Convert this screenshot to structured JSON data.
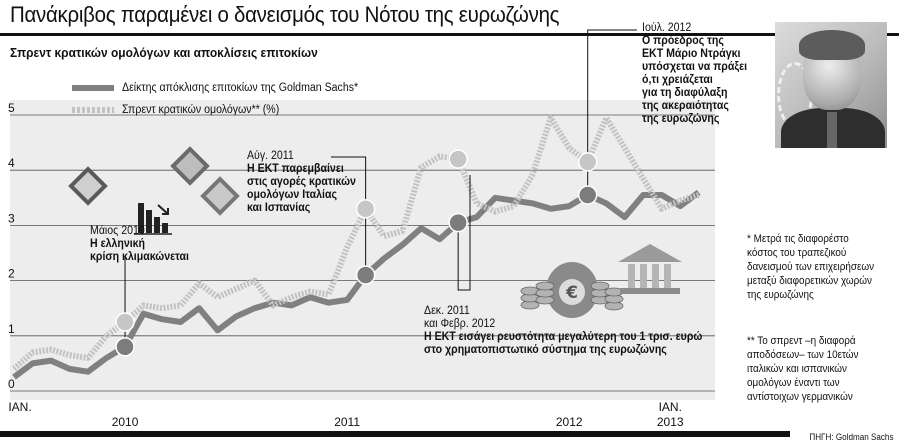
{
  "title": "Πανάκριβος παραμένει ο δανεισμός του Νότου της ευρωζώνης",
  "subtitle": "Σπρεντ κρατικών ομολόγων και αποκλίσεις επιτοκίων",
  "legend": {
    "series1": "Δείκτης απόκλισης επιτοκίων της Goldman Sachs*",
    "series2": "Σπρεντ κρατικών ομολόγων** (%)"
  },
  "annotations": {
    "may2010": {
      "date": "Μάιος 2010",
      "text1": "Η ελληνική",
      "text2": "κρίση κλιμακώνεται"
    },
    "aug2011": {
      "date": "Αύγ. 2011",
      "text1": "Η ΕΚΤ παρεμβαίνει",
      "text2": "στις αγορές κρατικών",
      "text3": "ομολόγων Ιταλίας",
      "text4": "και Ισπανίας"
    },
    "dec2011": {
      "date1": "Δεκ. 2011",
      "date2": "και Φεβρ. 2012",
      "text1": "Η ΕΚΤ εισάγει ρευστότητα μεγαλύτερη του 1 τρισ. ευρώ",
      "text2": "στο χρηματοπιστωτικό σύστημα της ευρωζώνης"
    },
    "jul2012": {
      "date": "Ιούλ. 2012",
      "text1": "Ο πρόεδρος της",
      "text2": "ΕΚΤ Μάριο Ντράγκι",
      "text3": "υπόσχεται να πράξει",
      "text4": "ό,τι χρειάζεται",
      "text5": "για τη διαφύλαξη",
      "text6": "της ακεραιότητας",
      "text7": "της ευρωζώνης"
    }
  },
  "notes": {
    "note1": [
      "* Μετρά τις διαφορέστο",
      "κόστος του τραπεζικού",
      "δανεισμού των επιχειρήσεων",
      "μεταξύ διαφορετικών χωρών",
      "της ευρωζώνης"
    ],
    "note2": [
      "** Το σπρεντ –η διαφορά",
      "αποδόσεων– των 10ετών",
      "ιταλικών και ισπανικών",
      "ομολόγων έναντι των",
      "αντίστοιχων γερμανικών"
    ]
  },
  "source": "ΠΗΓΗ: Goldman Sachs",
  "chart_data": {
    "type": "line",
    "ylim": [
      0,
      5
    ],
    "yticks": [
      "0",
      "1",
      "2",
      "3",
      "4",
      "5"
    ],
    "xticks": [
      {
        "label": "ΙΑΝ.",
        "sub": "",
        "t": 0
      },
      {
        "label": "2010",
        "sub": "",
        "t": 6
      },
      {
        "label": "2011",
        "sub": "",
        "t": 18
      },
      {
        "label": "2012",
        "sub": "",
        "t": 30
      },
      {
        "label": "ΙΑΝ.",
        "sub": "2013",
        "t": 36
      }
    ],
    "x_unit": "months since Jan. 2010",
    "series": [
      {
        "name": "Δείκτης απόκλισης επιτοκίων της Goldman Sachs*",
        "style": "solid",
        "color": "#808080",
        "points": [
          [
            0,
            0.25
          ],
          [
            1,
            0.5
          ],
          [
            2,
            0.55
          ],
          [
            3,
            0.4
          ],
          [
            4,
            0.35
          ],
          [
            5,
            0.6
          ],
          [
            6,
            0.8
          ],
          [
            7,
            1.4
          ],
          [
            8,
            1.3
          ],
          [
            9,
            1.25
          ],
          [
            10,
            1.5
          ],
          [
            11,
            1.1
          ],
          [
            12,
            1.35
          ],
          [
            13,
            1.5
          ],
          [
            14,
            1.6
          ],
          [
            15,
            1.55
          ],
          [
            16,
            1.7
          ],
          [
            17,
            1.6
          ],
          [
            18,
            1.65
          ],
          [
            19,
            2.1
          ],
          [
            20,
            2.4
          ],
          [
            21,
            2.65
          ],
          [
            22,
            2.95
          ],
          [
            23,
            2.75
          ],
          [
            24,
            3.05
          ],
          [
            25,
            3.15
          ],
          [
            26,
            3.5
          ],
          [
            27,
            3.45
          ],
          [
            28,
            3.4
          ],
          [
            29,
            3.3
          ],
          [
            30,
            3.35
          ],
          [
            31,
            3.55
          ],
          [
            32,
            3.4
          ],
          [
            33,
            3.15
          ],
          [
            34,
            3.55
          ],
          [
            35,
            3.55
          ],
          [
            36,
            3.35
          ],
          [
            37,
            3.6
          ]
        ]
      },
      {
        "name": "Σπρεντ κρατικών ομολόγων** (%)",
        "style": "dashed",
        "color": "#c2c2c2",
        "points": [
          [
            0,
            0.4
          ],
          [
            1,
            0.7
          ],
          [
            2,
            0.75
          ],
          [
            3,
            0.65
          ],
          [
            4,
            0.6
          ],
          [
            5,
            1.0
          ],
          [
            6,
            1.25
          ],
          [
            7,
            1.55
          ],
          [
            8,
            1.5
          ],
          [
            9,
            1.55
          ],
          [
            10,
            1.95
          ],
          [
            11,
            1.7
          ],
          [
            12,
            1.85
          ],
          [
            13,
            2.0
          ],
          [
            14,
            1.55
          ],
          [
            15,
            1.7
          ],
          [
            16,
            1.8
          ],
          [
            17,
            1.75
          ],
          [
            18,
            2.6
          ],
          [
            19,
            3.3
          ],
          [
            20,
            2.8
          ],
          [
            21,
            2.9
          ],
          [
            22,
            4.05
          ],
          [
            23,
            4.25
          ],
          [
            24,
            4.2
          ],
          [
            25,
            3.4
          ],
          [
            26,
            3.25
          ],
          [
            27,
            3.35
          ],
          [
            28,
            3.9
          ],
          [
            29,
            4.95
          ],
          [
            30,
            4.4
          ],
          [
            31,
            4.15
          ],
          [
            32,
            4.95
          ],
          [
            33,
            4.4
          ],
          [
            34,
            3.85
          ],
          [
            35,
            3.3
          ],
          [
            36,
            3.45
          ],
          [
            37,
            3.55
          ]
        ]
      }
    ],
    "markers": [
      {
        "series": 0,
        "t": 6
      },
      {
        "series": 1,
        "t": 6
      },
      {
        "series": 0,
        "t": 19
      },
      {
        "series": 1,
        "t": 19
      },
      {
        "series": 0,
        "t": 24
      },
      {
        "series": 1,
        "t": 24
      },
      {
        "series": 0,
        "t": 31
      },
      {
        "series": 1,
        "t": 31
      }
    ]
  }
}
